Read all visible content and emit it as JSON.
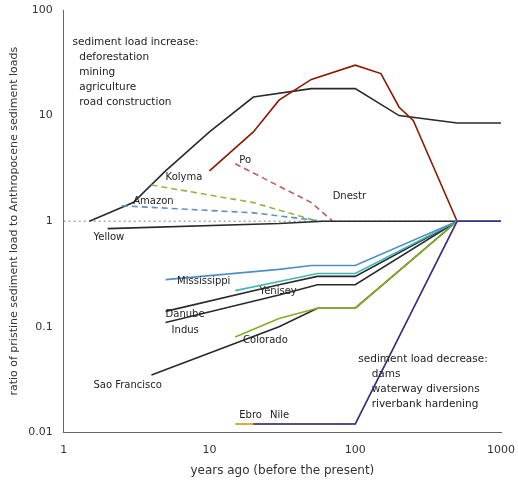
{
  "chart_data": {
    "type": "line",
    "log": true,
    "grid": false,
    "xlabel": "years ago (before the present)",
    "ylabel": "ratio of pristine sediment load to Anthropocene sediment loads",
    "xlim": [
      1,
      1000
    ],
    "ylim": [
      0.01,
      100
    ],
    "xticks": [
      1,
      10,
      100,
      1000
    ],
    "yticks": [
      0.01,
      0.1,
      1,
      10,
      100
    ],
    "series": [
      {
        "x": [
          1.5,
          3,
          5,
          10,
          20,
          50,
          100,
          200,
          500,
          1000
        ],
        "values": [
          1.0,
          1.5,
          3.0,
          7.0,
          15.0,
          18.0,
          18.0,
          10.0,
          8.5,
          8.5
        ],
        "color": "#2a2a2a",
        "line_style": "solid"
      },
      {
        "x": [
          10,
          20,
          30,
          50,
          100,
          150,
          200,
          250,
          500,
          1000
        ],
        "values": [
          3.0,
          7.0,
          14.0,
          22.0,
          30.0,
          25.0,
          12.0,
          9.0,
          1.0,
          1.0
        ],
        "color": "#8b1a00",
        "line_style": "solid"
      },
      {
        "name": "Po",
        "x": [
          15,
          50,
          70
        ],
        "values": [
          3.5,
          1.5,
          1.0
        ],
        "color": "#c06060",
        "line_style": "dashed"
      },
      {
        "name": "Kolyma",
        "x": [
          4,
          20,
          55
        ],
        "values": [
          2.2,
          1.5,
          1.0
        ],
        "color": "#90b840",
        "line_style": "dashed"
      },
      {
        "name": "Amazon",
        "x": [
          2.5,
          20,
          60
        ],
        "values": [
          1.4,
          1.2,
          1.0
        ],
        "color": "#6090c0",
        "line_style": "dashed"
      },
      {
        "name": "Sao Francisco",
        "x": [
          4,
          30,
          55,
          100,
          500,
          1000
        ],
        "values": [
          0.035,
          0.1,
          0.15,
          0.15,
          1.0,
          1.0
        ],
        "color": "#2a2a2a",
        "line_style": "solid"
      },
      {
        "name": "Indus",
        "x": [
          5,
          30,
          55,
          100,
          500,
          1000
        ],
        "values": [
          0.11,
          0.2,
          0.25,
          0.25,
          1.0,
          1.0
        ],
        "color": "#2a2a2a",
        "line_style": "solid"
      },
      {
        "name": "Danube",
        "x": [
          5,
          30,
          55,
          100,
          500,
          1000
        ],
        "values": [
          0.14,
          0.25,
          0.3,
          0.3,
          1.0,
          1.0
        ],
        "color": "#2a2a2a",
        "line_style": "solid"
      },
      {
        "name": "Yellow",
        "x": [
          2,
          30,
          60,
          1000
        ],
        "values": [
          0.85,
          0.95,
          1.0,
          1.0
        ],
        "color": "#2a2a2a",
        "line_style": "solid"
      },
      {
        "name": "Colorado",
        "x": [
          15,
          30,
          55,
          100,
          500,
          1000
        ],
        "values": [
          0.08,
          0.12,
          0.15,
          0.15,
          1.0,
          1.0
        ],
        "color": "#80b020",
        "line_style": "solid"
      },
      {
        "name": "Yenisey",
        "x": [
          15,
          35,
          55,
          100,
          500,
          1000
        ],
        "values": [
          0.22,
          0.28,
          0.32,
          0.32,
          1.0,
          1.0
        ],
        "color": "#40b8b8",
        "line_style": "solid"
      },
      {
        "name": "Mississippi",
        "x": [
          5,
          30,
          50,
          100,
          500,
          1000
        ],
        "values": [
          0.28,
          0.35,
          0.38,
          0.38,
          1.0,
          1.0
        ],
        "color": "#5090c0",
        "line_style": "solid"
      },
      {
        "name": "Ebro",
        "x": [
          15,
          50,
          55,
          100,
          500,
          1000
        ],
        "values": [
          0.012,
          0.012,
          0.012,
          0.012,
          1.0,
          1.0
        ],
        "color": "#d09000",
        "line_style": "solid"
      },
      {
        "name": "Nile",
        "x": [
          20,
          50,
          58,
          100,
          500,
          1000
        ],
        "values": [
          0.012,
          0.012,
          0.012,
          0.012,
          1.0,
          1.0
        ],
        "color": "#3030a0",
        "line_style": "solid"
      }
    ],
    "reference_lines": [
      {
        "y": 1.0,
        "color": "gray",
        "line_style": "dotted"
      }
    ],
    "annotations": [
      {
        "text": "sediment load increase:\n  deforestation\n  mining\n  agriculture\n  road construction",
        "x": 1.15,
        "y": 55
      },
      {
        "text": "sediment load decrease:\n    dams\n    waterway diversions\n    riverbank hardening",
        "x": 105,
        "y": 0.055
      }
    ],
    "text_labels": [
      {
        "text": "Po",
        "x": 16,
        "y": 3.8
      },
      {
        "text": "Dnestr",
        "x": 70,
        "y": 1.7
      },
      {
        "text": "Kolyma",
        "x": 5,
        "y": 2.6
      },
      {
        "text": "Amazon",
        "x": 3,
        "y": 1.55
      },
      {
        "text": "Yellow",
        "x": 1.6,
        "y": 0.7
      },
      {
        "text": "Mississippi",
        "x": 6,
        "y": 0.27
      },
      {
        "text": "Danube",
        "x": 5,
        "y": 0.13
      },
      {
        "text": "Indus",
        "x": 5.5,
        "y": 0.093
      },
      {
        "text": "Sao Francisco",
        "x": 1.6,
        "y": 0.028
      },
      {
        "text": "Yenisey",
        "x": 22,
        "y": 0.215
      },
      {
        "text": "Colorado",
        "x": 17,
        "y": 0.075
      },
      {
        "text": "Ebro",
        "x": 16,
        "y": 0.0145
      },
      {
        "text": "Nile",
        "x": 26,
        "y": 0.0145
      }
    ]
  }
}
